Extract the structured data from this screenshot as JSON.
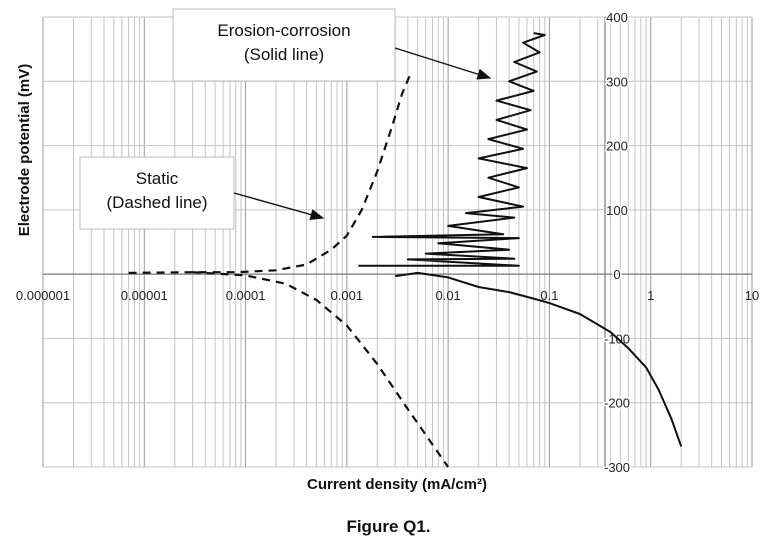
{
  "chart_data": {
    "type": "line",
    "title": "",
    "xlabel": "Current density (mA/cm²)",
    "ylabel": "Electrode potential (mV)",
    "x_scale": "log",
    "xlim": [
      1e-06,
      10
    ],
    "ylim": [
      -300,
      400
    ],
    "x_ticks": [
      "0.000001",
      "0.00001",
      "0.0001",
      "0.001",
      "0.01",
      "0.1",
      "1",
      "10"
    ],
    "y_ticks": [
      "-300",
      "-200",
      "-100",
      "0",
      "100",
      "200",
      "300",
      "400"
    ],
    "grid": true,
    "annotations": [
      {
        "text": "Erosion-corrosion\n(Solid line)"
      },
      {
        "text": "Static\n(Dashed line)"
      }
    ],
    "series": [
      {
        "style": "dashed",
        "points": [
          [
            7e-06,
            2
          ],
          [
            3e-05,
            3
          ],
          [
            8e-05,
            3
          ],
          [
            0.0002,
            6
          ],
          [
            0.0004,
            15
          ],
          [
            0.0007,
            38
          ],
          [
            0.001,
            60
          ],
          [
            0.0014,
            100
          ],
          [
            0.002,
            160
          ],
          [
            0.0028,
            230
          ],
          [
            0.0035,
            280
          ],
          [
            0.0042,
            310
          ]
        ]
      },
      {
        "style": "dashed",
        "points": [
          [
            3e-05,
            3
          ],
          [
            0.0001,
            -2
          ],
          [
            0.00025,
            -15
          ],
          [
            0.0005,
            -40
          ],
          [
            0.001,
            -80
          ],
          [
            0.002,
            -140
          ],
          [
            0.004,
            -210
          ],
          [
            0.007,
            -265
          ],
          [
            0.01,
            -300
          ]
        ]
      },
      {
        "style": "solid",
        "points": [
          [
            0.003,
            -3
          ],
          [
            0.005,
            2
          ],
          [
            0.01,
            -5
          ],
          [
            0.02,
            -20
          ],
          [
            0.04,
            -28
          ],
          [
            0.07,
            -38
          ],
          [
            0.1,
            -45
          ],
          [
            0.2,
            -62
          ],
          [
            0.4,
            -90
          ],
          [
            0.6,
            -115
          ],
          [
            0.9,
            -145
          ],
          [
            1.2,
            -180
          ],
          [
            1.6,
            -225
          ],
          [
            2,
            -268
          ]
        ]
      },
      {
        "style": "solid",
        "points": [
          [
            0.0013,
            13
          ],
          [
            0.05,
            13
          ],
          [
            0.004,
            23
          ],
          [
            0.045,
            24
          ],
          [
            0.006,
            32
          ],
          [
            0.04,
            38
          ],
          [
            0.008,
            48
          ],
          [
            0.05,
            56
          ],
          [
            0.0018,
            58
          ],
          [
            0.035,
            62
          ],
          [
            0.01,
            75
          ],
          [
            0.045,
            88
          ],
          [
            0.015,
            95
          ],
          [
            0.055,
            105
          ],
          [
            0.02,
            120
          ],
          [
            0.05,
            135
          ],
          [
            0.025,
            150
          ],
          [
            0.06,
            165
          ],
          [
            0.02,
            180
          ],
          [
            0.055,
            195
          ],
          [
            0.025,
            210
          ],
          [
            0.06,
            225
          ],
          [
            0.03,
            240
          ],
          [
            0.065,
            255
          ],
          [
            0.03,
            270
          ],
          [
            0.07,
            285
          ],
          [
            0.04,
            300
          ],
          [
            0.075,
            315
          ],
          [
            0.045,
            330
          ],
          [
            0.08,
            345
          ],
          [
            0.055,
            360
          ],
          [
            0.09,
            372
          ],
          [
            0.07,
            375
          ]
        ]
      }
    ]
  },
  "caption": "Figure Q1."
}
